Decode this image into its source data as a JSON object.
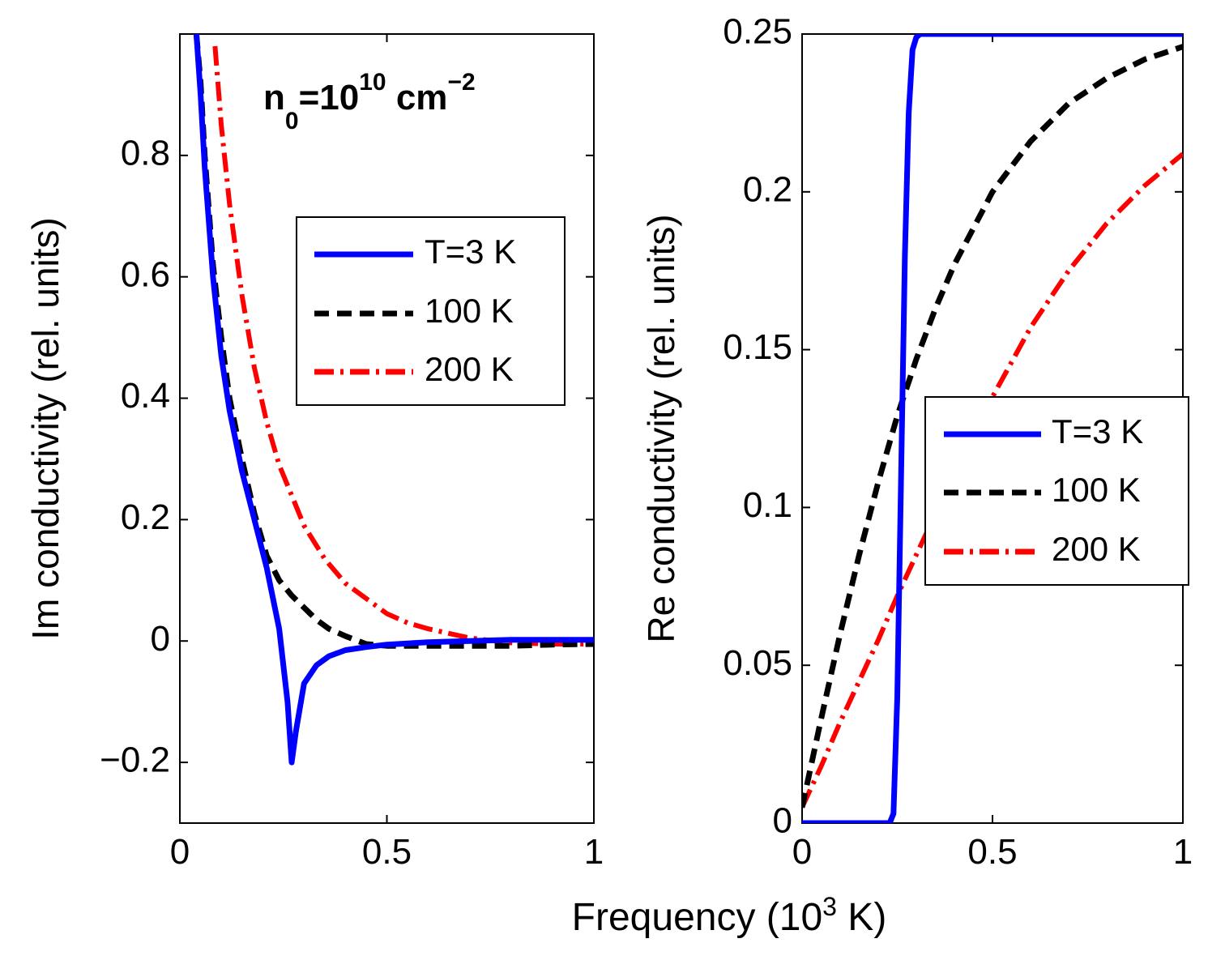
{
  "chart_data": [
    {
      "type": "line",
      "panel": "left",
      "ylabel": "Im conductivity (rel. units)",
      "xlabel": "",
      "xlim": [
        0,
        1
      ],
      "ylim": [
        -0.3,
        1.0
      ],
      "x_ticks": [
        "0",
        "0.5",
        "1"
      ],
      "y_ticks": [
        "−0.2",
        "0",
        "0.2",
        "0.4",
        "0.6",
        "0.8"
      ],
      "y_tick_values": [
        -0.2,
        0,
        0.2,
        0.4,
        0.6,
        0.8
      ],
      "x_tick_values": [
        0,
        0.5,
        1
      ],
      "annotation": {
        "base": "n",
        "sub": "0",
        "mid": "=10",
        "sup1": "10",
        "unit": " cm",
        "sup2": "−2"
      },
      "legend": {
        "entries": [
          "T=3 K",
          "100 K",
          "200 K"
        ],
        "placement": "right-middle"
      },
      "series": [
        {
          "name": "T=3 K",
          "color": "#0000ff",
          "style": "solid",
          "x": [
            0.04,
            0.05,
            0.06,
            0.08,
            0.1,
            0.12,
            0.15,
            0.18,
            0.21,
            0.24,
            0.26,
            0.27,
            0.28,
            0.3,
            0.33,
            0.36,
            0.4,
            0.45,
            0.5,
            0.6,
            0.7,
            0.8,
            0.9,
            1.0
          ],
          "y": [
            1.0,
            0.9,
            0.78,
            0.6,
            0.47,
            0.38,
            0.28,
            0.2,
            0.12,
            0.02,
            -0.1,
            -0.2,
            -0.15,
            -0.07,
            -0.04,
            -0.025,
            -0.015,
            -0.01,
            -0.006,
            -0.002,
            0.0,
            0.002,
            0.002,
            0.002
          ]
        },
        {
          "name": "100 K",
          "color": "#000000",
          "style": "dashed",
          "x": [
            0.04,
            0.05,
            0.06,
            0.08,
            0.1,
            0.12,
            0.15,
            0.18,
            0.21,
            0.24,
            0.27,
            0.3,
            0.33,
            0.36,
            0.4,
            0.45,
            0.5,
            0.6,
            0.7,
            0.8,
            0.9,
            1.0
          ],
          "y": [
            1.0,
            0.92,
            0.8,
            0.62,
            0.5,
            0.4,
            0.3,
            0.21,
            0.14,
            0.1,
            0.075,
            0.055,
            0.035,
            0.02,
            0.008,
            -0.005,
            -0.008,
            -0.008,
            -0.008,
            -0.008,
            -0.006,
            -0.005
          ]
        },
        {
          "name": "200 K",
          "color": "#ff0000",
          "style": "dashdot",
          "x": [
            0.085,
            0.1,
            0.12,
            0.15,
            0.18,
            0.21,
            0.24,
            0.27,
            0.3,
            0.35,
            0.4,
            0.45,
            0.5,
            0.55,
            0.6,
            0.7,
            0.8,
            0.9,
            1.0
          ],
          "y": [
            0.98,
            0.85,
            0.72,
            0.57,
            0.45,
            0.36,
            0.29,
            0.24,
            0.19,
            0.135,
            0.095,
            0.07,
            0.045,
            0.03,
            0.02,
            0.005,
            -0.003,
            -0.005,
            -0.005
          ]
        }
      ]
    },
    {
      "type": "line",
      "panel": "right",
      "ylabel": "Re conductivity (rel. units)",
      "xlabel": "Frequency (10",
      "xlabel_sup": "3",
      "xlabel_end": " K)",
      "xlim": [
        0,
        1
      ],
      "ylim": [
        0,
        0.25
      ],
      "x_ticks": [
        "0",
        "0.5",
        "1"
      ],
      "y_ticks": [
        "0",
        "0.05",
        "0.1",
        "0.15",
        "0.2",
        "0.25"
      ],
      "y_tick_values": [
        0,
        0.05,
        0.1,
        0.15,
        0.2,
        0.25
      ],
      "x_tick_values": [
        0,
        0.5,
        1
      ],
      "legend": {
        "entries": [
          "T=3 K",
          "100 K",
          "200 K"
        ],
        "placement": "right-middle"
      },
      "series": [
        {
          "name": "T=3 K",
          "color": "#0000ff",
          "style": "solid",
          "x": [
            0.0,
            0.23,
            0.24,
            0.25,
            0.26,
            0.27,
            0.28,
            0.29,
            0.3,
            0.31,
            1.0
          ],
          "y": [
            0.0,
            0.0,
            0.003,
            0.04,
            0.11,
            0.18,
            0.225,
            0.245,
            0.249,
            0.25,
            0.25
          ]
        },
        {
          "name": "100 K",
          "color": "#000000",
          "style": "dashed",
          "x": [
            0.0,
            0.05,
            0.1,
            0.15,
            0.2,
            0.25,
            0.3,
            0.35,
            0.4,
            0.5,
            0.6,
            0.7,
            0.8,
            0.9,
            1.0
          ],
          "y": [
            0.005,
            0.033,
            0.06,
            0.085,
            0.108,
            0.129,
            0.147,
            0.163,
            0.177,
            0.2,
            0.216,
            0.228,
            0.236,
            0.242,
            0.246
          ]
        },
        {
          "name": "200 K",
          "color": "#ff0000",
          "style": "dashdot",
          "x": [
            0.0,
            0.05,
            0.1,
            0.15,
            0.2,
            0.25,
            0.3,
            0.35,
            0.4,
            0.5,
            0.6,
            0.7,
            0.8,
            0.9,
            1.0
          ],
          "y": [
            0.005,
            0.018,
            0.032,
            0.045,
            0.058,
            0.072,
            0.085,
            0.098,
            0.11,
            0.135,
            0.157,
            0.175,
            0.19,
            0.202,
            0.212
          ]
        }
      ]
    }
  ]
}
